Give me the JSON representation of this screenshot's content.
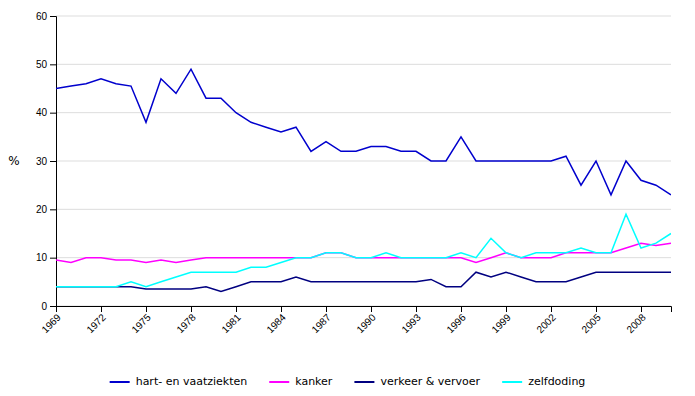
{
  "chart_data": {
    "type": "line",
    "y_label": "%",
    "x": [
      1969,
      1970,
      1971,
      1972,
      1973,
      1974,
      1975,
      1976,
      1977,
      1978,
      1979,
      1980,
      1981,
      1982,
      1983,
      1984,
      1985,
      1986,
      1987,
      1988,
      1989,
      1990,
      1991,
      1992,
      1993,
      1994,
      1995,
      1996,
      1997,
      1998,
      1999,
      2000,
      2001,
      2002,
      2003,
      2004,
      2005,
      2006,
      2007,
      2008,
      2009,
      2010
    ],
    "series": [
      {
        "name": "hart- en vaatziekten",
        "color": "#0000CD",
        "values": [
          45,
          45.5,
          46,
          47,
          46,
          45.5,
          38,
          47,
          44,
          49,
          43,
          43,
          40,
          38,
          37,
          36,
          37,
          32,
          34,
          32,
          32,
          33,
          33,
          32,
          32,
          30,
          30,
          35,
          30,
          30,
          30,
          30,
          30,
          30,
          31,
          25,
          30,
          23,
          30,
          26,
          25,
          23
        ]
      },
      {
        "name": "kanker",
        "color": "#FF00FF",
        "values": [
          9.5,
          9,
          10,
          10,
          9.5,
          9.5,
          9,
          9.5,
          9,
          9.5,
          10,
          10,
          10,
          10,
          10,
          10,
          10,
          10,
          11,
          11,
          10,
          10,
          10,
          10,
          10,
          10,
          10,
          10,
          9,
          10,
          11,
          10,
          10,
          10,
          11,
          11,
          11,
          11,
          12,
          13,
          12.5,
          13
        ]
      },
      {
        "name": "verkeer & vervoer",
        "color": "#000080",
        "values": [
          4,
          4,
          4,
          4,
          4,
          4,
          3.5,
          3.5,
          3.5,
          3.5,
          4,
          3,
          4,
          5,
          5,
          5,
          6,
          5,
          5,
          5,
          5,
          5,
          5,
          5,
          5,
          5.5,
          4,
          4,
          7,
          6,
          7,
          6,
          5,
          5,
          5,
          6,
          7,
          7,
          7,
          7,
          7,
          7
        ]
      },
      {
        "name": "zelfdoding",
        "color": "#00FFFF",
        "values": [
          4,
          4,
          4,
          4,
          4,
          5,
          4,
          5,
          6,
          7,
          7,
          7,
          7,
          8,
          8,
          9,
          10,
          10,
          11,
          11,
          10,
          10,
          11,
          10,
          10,
          10,
          10,
          11,
          10,
          14,
          11,
          10,
          11,
          11,
          11,
          12,
          11,
          11,
          19,
          12,
          13,
          15
        ]
      }
    ],
    "xlim": [
      1969,
      2010
    ],
    "xticks": [
      1969,
      1972,
      1975,
      1978,
      1981,
      1984,
      1987,
      1990,
      1993,
      1996,
      1999,
      2002,
      2005,
      2008
    ],
    "ylim": [
      0,
      60
    ],
    "yticks": [
      0,
      10,
      20,
      30,
      40,
      50,
      60
    ],
    "grid": "y",
    "legend": "bottom"
  }
}
